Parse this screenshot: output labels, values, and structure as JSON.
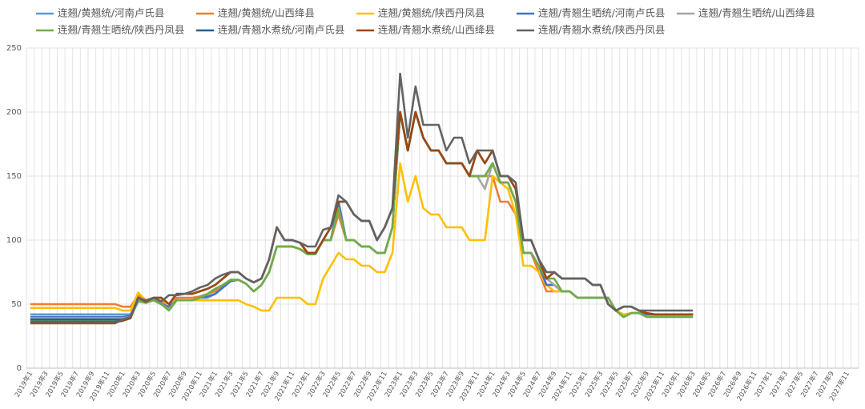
{
  "chart_data": {
    "type": "line",
    "categories": [
      "2019年1",
      null,
      "2019年3",
      null,
      "2019年5",
      null,
      "2019年7",
      null,
      "2019年9",
      null,
      "2019年11",
      null,
      "2020年1",
      null,
      "2020年3",
      null,
      "2020年5",
      null,
      "2020年7",
      null,
      "2020年9",
      null,
      "2020年11",
      null,
      "2021年1",
      null,
      "2021年3",
      null,
      "2021年5",
      null,
      "2021年7",
      null,
      "2021年9",
      null,
      "2021年11",
      null,
      "2022年1",
      null,
      "2022年3",
      null,
      "2022年5",
      null,
      "2022年7",
      null,
      "2022年9",
      null,
      "2022年11",
      null,
      "2023年1",
      null,
      "2023年3",
      null,
      "2023年5",
      null,
      "2023年7",
      null,
      "2023年9",
      null,
      "2023年11",
      null,
      "2024年1",
      null,
      "2024年3",
      null,
      "2024年5",
      null,
      "2024年7",
      null,
      "2024年9",
      null,
      "2024年11",
      null,
      "2025年1",
      null,
      "2025年3",
      null,
      "2025年5",
      null,
      "2025年7",
      null,
      "2025年9",
      null,
      "2025年11",
      null,
      "2026年1",
      null,
      "2026年3",
      null,
      "2026年5",
      null,
      "2026年7",
      null,
      "2026年9",
      null,
      "2026年11",
      null,
      "2027年1",
      null,
      "2027年3",
      null,
      "2027年5",
      null,
      "2027年7",
      null,
      "2027年9",
      null,
      "2027年11",
      null
    ],
    "ylim": [
      0,
      250
    ],
    "yticks": [
      0,
      50,
      100,
      150,
      200,
      250
    ],
    "grid": true,
    "series": [
      {
        "name": "连翘/黄翘统/河南卢氏县",
        "color": "#5b9bd5",
        "values": [
          42,
          42,
          42,
          42,
          42,
          42,
          42,
          42,
          42,
          42,
          42,
          42,
          42,
          42,
          52,
          52,
          53,
          50,
          48,
          53,
          53,
          53,
          55,
          55,
          58,
          63,
          68,
          69,
          66,
          60,
          65,
          75,
          95,
          95,
          95,
          93,
          89,
          89,
          100,
          100,
          130,
          100,
          100,
          95,
          95,
          90,
          90,
          110,
          200,
          170,
          200,
          180,
          170,
          170,
          160,
          160,
          160,
          150,
          150,
          150,
          160,
          145,
          145,
          130,
          90,
          90,
          80,
          65,
          65,
          60,
          60,
          55,
          55,
          55,
          55,
          55,
          45,
          40,
          43,
          43,
          42,
          42,
          42,
          42,
          42,
          42,
          42,
          null,
          null,
          null,
          null,
          null,
          null,
          null,
          null,
          null,
          null,
          null,
          null,
          null,
          null,
          null,
          null,
          null,
          null,
          null,
          null,
          null
        ]
      },
      {
        "name": "连翘/黄翘统/山西绛县",
        "color": "#ed7d31",
        "values": [
          50,
          50,
          50,
          50,
          50,
          50,
          50,
          50,
          50,
          50,
          50,
          50,
          48,
          48,
          57,
          52,
          54,
          52,
          47,
          55,
          55,
          55,
          56,
          58,
          60,
          64,
          68,
          69,
          66,
          60,
          65,
          75,
          95,
          95,
          95,
          93,
          90,
          90,
          100,
          100,
          120,
          100,
          100,
          95,
          95,
          90,
          90,
          110,
          200,
          170,
          200,
          180,
          170,
          170,
          160,
          160,
          160,
          150,
          150,
          150,
          150,
          130,
          130,
          120,
          90,
          90,
          75,
          60,
          60,
          60,
          60,
          55,
          55,
          55,
          55,
          55,
          45,
          40,
          43,
          43,
          42,
          42,
          42,
          42,
          42,
          42,
          42,
          null,
          null,
          null,
          null,
          null,
          null,
          null,
          null,
          null,
          null,
          null,
          null,
          null,
          null,
          null,
          null,
          null,
          null,
          null,
          null,
          null
        ]
      },
      {
        "name": "连翘/黄翘统/陕西丹凤县",
        "color": "#ffc000",
        "values": [
          47,
          47,
          47,
          47,
          47,
          47,
          47,
          47,
          47,
          47,
          47,
          47,
          45,
          45,
          59,
          53,
          53,
          53,
          50,
          53,
          53,
          53,
          53,
          53,
          53,
          53,
          53,
          53,
          50,
          48,
          45,
          45,
          55,
          55,
          55,
          55,
          50,
          50,
          70,
          80,
          90,
          85,
          85,
          80,
          80,
          75,
          75,
          90,
          160,
          130,
          150,
          125,
          120,
          120,
          110,
          110,
          110,
          100,
          100,
          100,
          150,
          145,
          140,
          120,
          80,
          80,
          75,
          65,
          60,
          60,
          60,
          55,
          55,
          55,
          55,
          55,
          45,
          42,
          43,
          43,
          42,
          42,
          42,
          42,
          42,
          42,
          42,
          null,
          null,
          null,
          null,
          null,
          null,
          null,
          null,
          null,
          null,
          null,
          null,
          null,
          null,
          null,
          null,
          null,
          null,
          null,
          null,
          null
        ]
      },
      {
        "name": "连翘/青翘生晒统/河南卢氏县",
        "color": "#4472c4",
        "values": [
          40,
          40,
          40,
          40,
          40,
          40,
          40,
          40,
          40,
          40,
          40,
          40,
          40,
          41,
          52,
          52,
          53,
          50,
          48,
          53,
          53,
          53,
          55,
          56,
          58,
          63,
          68,
          69,
          66,
          60,
          65,
          75,
          95,
          95,
          95,
          93,
          89,
          89,
          100,
          100,
          130,
          100,
          100,
          95,
          95,
          90,
          90,
          110,
          200,
          170,
          200,
          180,
          170,
          170,
          160,
          160,
          160,
          150,
          150,
          150,
          160,
          145,
          145,
          130,
          90,
          90,
          80,
          65,
          65,
          60,
          60,
          55,
          55,
          55,
          55,
          55,
          45,
          40,
          43,
          43,
          42,
          42,
          42,
          42,
          42,
          42,
          42,
          null,
          null,
          null,
          null,
          null,
          null,
          null,
          null,
          null,
          null,
          null,
          null,
          null,
          null,
          null,
          null,
          null,
          null,
          null,
          null,
          null
        ]
      },
      {
        "name": "连翘/青翘生晒统/山西绛县",
        "color": "#a5a5a5",
        "values": [
          39,
          39,
          39,
          39,
          39,
          39,
          39,
          39,
          39,
          39,
          39,
          39,
          39,
          40,
          52,
          51,
          53,
          50,
          46,
          53,
          53,
          53,
          55,
          58,
          62,
          65,
          69,
          69,
          66,
          60,
          65,
          75,
          95,
          95,
          95,
          93,
          89,
          89,
          100,
          100,
          125,
          100,
          100,
          95,
          95,
          90,
          90,
          110,
          200,
          170,
          200,
          180,
          170,
          170,
          160,
          160,
          160,
          150,
          150,
          140,
          160,
          145,
          145,
          130,
          90,
          90,
          80,
          70,
          65,
          60,
          60,
          55,
          55,
          55,
          55,
          55,
          45,
          40,
          43,
          43,
          40,
          40,
          40,
          40,
          40,
          40,
          40,
          null,
          null,
          null,
          null,
          null,
          null,
          null,
          null,
          null,
          null,
          null,
          null,
          null,
          null,
          null,
          null,
          null,
          null,
          null,
          null,
          null
        ]
      },
      {
        "name": "连翘/青翘生晒统/陕西丹凤县",
        "color": "#70ad47",
        "values": [
          37,
          37,
          37,
          37,
          37,
          37,
          37,
          37,
          37,
          37,
          37,
          37,
          38,
          39,
          53,
          51,
          53,
          50,
          45,
          53,
          53,
          53,
          55,
          58,
          62,
          65,
          69,
          69,
          66,
          60,
          65,
          75,
          95,
          95,
          95,
          93,
          89,
          89,
          100,
          100,
          125,
          100,
          100,
          95,
          95,
          90,
          90,
          110,
          200,
          170,
          200,
          180,
          170,
          170,
          160,
          160,
          160,
          150,
          150,
          150,
          160,
          145,
          145,
          130,
          90,
          90,
          80,
          70,
          70,
          60,
          60,
          55,
          55,
          55,
          55,
          55,
          45,
          40,
          43,
          43,
          40,
          40,
          40,
          40,
          40,
          40,
          40,
          null,
          null,
          null,
          null,
          null,
          null,
          null,
          null,
          null,
          null,
          null,
          null,
          null,
          null,
          null,
          null,
          null,
          null,
          null,
          null,
          null
        ]
      },
      {
        "name": "连翘/青翘水煮统/河南卢氏县",
        "color": "#255e91",
        "values": [
          38,
          38,
          38,
          38,
          38,
          38,
          38,
          38,
          38,
          38,
          38,
          38,
          38,
          39,
          55,
          52,
          55,
          55,
          50,
          58,
          58,
          58,
          60,
          62,
          65,
          70,
          75,
          75,
          70,
          67,
          70,
          85,
          110,
          100,
          100,
          98,
          90,
          90,
          100,
          110,
          130,
          130,
          120,
          115,
          115,
          100,
          110,
          125,
          200,
          170,
          200,
          180,
          170,
          170,
          160,
          160,
          160,
          150,
          170,
          160,
          170,
          150,
          150,
          140,
          100,
          100,
          85,
          70,
          75,
          70,
          70,
          70,
          70,
          65,
          65,
          50,
          45,
          48,
          48,
          45,
          43,
          42,
          42,
          42,
          42,
          42,
          42,
          null,
          null,
          null,
          null,
          null,
          null,
          null,
          null,
          null,
          null,
          null,
          null,
          null,
          null,
          null,
          null,
          null,
          null,
          null,
          null,
          null
        ]
      },
      {
        "name": "连翘/青翘水煮统/山西绛县",
        "color": "#9e480e",
        "values": [
          36,
          36,
          36,
          36,
          36,
          36,
          36,
          36,
          36,
          36,
          36,
          36,
          37,
          39,
          55,
          52,
          55,
          55,
          50,
          58,
          58,
          58,
          60,
          62,
          65,
          70,
          75,
          75,
          70,
          67,
          70,
          85,
          110,
          100,
          100,
          98,
          90,
          90,
          100,
          110,
          130,
          130,
          120,
          115,
          115,
          100,
          110,
          125,
          200,
          170,
          200,
          180,
          170,
          170,
          160,
          160,
          160,
          150,
          170,
          160,
          170,
          150,
          150,
          140,
          100,
          100,
          85,
          70,
          75,
          70,
          70,
          70,
          70,
          65,
          65,
          50,
          45,
          48,
          48,
          45,
          43,
          42,
          42,
          42,
          42,
          42,
          42,
          null,
          null,
          null,
          null,
          null,
          null,
          null,
          null,
          null,
          null,
          null,
          null,
          null,
          null,
          null,
          null,
          null,
          null,
          null,
          null,
          null
        ]
      },
      {
        "name": "连翘/青翘水煮统/陕西丹凤县",
        "color": "#636363",
        "values": [
          35,
          35,
          35,
          35,
          35,
          35,
          35,
          35,
          35,
          35,
          35,
          35,
          38,
          40,
          55,
          53,
          55,
          52,
          57,
          57,
          58,
          60,
          63,
          65,
          70,
          73,
          75,
          75,
          70,
          67,
          70,
          85,
          110,
          100,
          100,
          98,
          95,
          95,
          108,
          110,
          135,
          130,
          120,
          115,
          115,
          100,
          110,
          125,
          230,
          180,
          220,
          190,
          190,
          190,
          170,
          180,
          180,
          160,
          170,
          170,
          170,
          150,
          150,
          145,
          100,
          100,
          85,
          75,
          75,
          70,
          70,
          70,
          70,
          65,
          65,
          50,
          45,
          48,
          48,
          45,
          45,
          45,
          45,
          45,
          45,
          45,
          45,
          null,
          null,
          null,
          null,
          null,
          null,
          null,
          null,
          null,
          null,
          null,
          null,
          null,
          null,
          null,
          null,
          null,
          null,
          null,
          null,
          null
        ]
      }
    ]
  }
}
